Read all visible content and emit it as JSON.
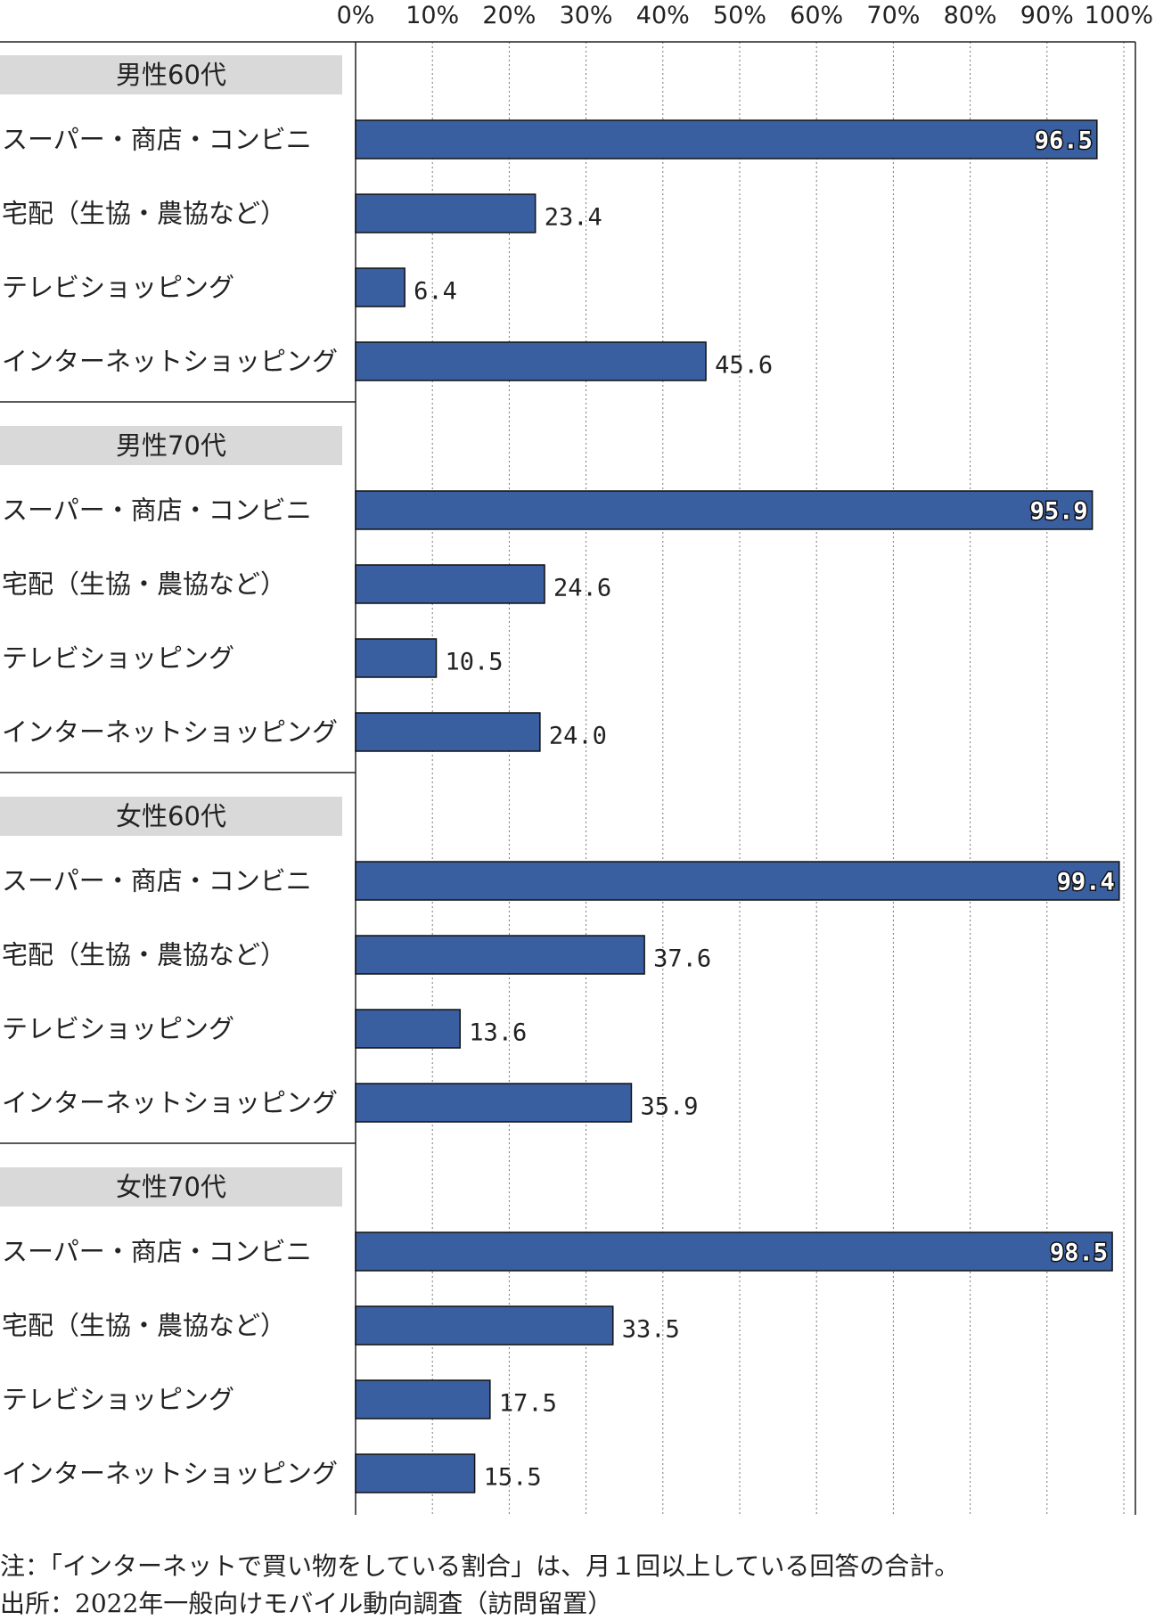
{
  "chart_data": {
    "type": "bar",
    "orientation": "horizontal",
    "x_ticks": [
      "0%",
      "10%",
      "20%",
      "30%",
      "40%",
      "50%",
      "60%",
      "70%",
      "80%",
      "90%",
      "100%"
    ],
    "xlim": [
      0,
      100
    ],
    "grid": "vertical dotted",
    "bar_color": "#3a5fa0",
    "groups": [
      {
        "name": "男性60代",
        "categories": [
          "スーパー・商店・コンビニ",
          "宅配（生協・農協など）",
          "テレビショッピング",
          "インターネットショッピング"
        ],
        "values": [
          96.5,
          23.4,
          6.4,
          45.6
        ],
        "labels": [
          "96.5",
          "23.4",
          "6.4",
          "45.6"
        ]
      },
      {
        "name": "男性70代",
        "categories": [
          "スーパー・商店・コンビニ",
          "宅配（生協・農協など）",
          "テレビショッピング",
          "インターネットショッピング"
        ],
        "values": [
          95.9,
          24.6,
          10.5,
          24.0
        ],
        "labels": [
          "95.9",
          "24.6",
          "10.5",
          "24.0"
        ]
      },
      {
        "name": "女性60代",
        "categories": [
          "スーパー・商店・コンビニ",
          "宅配（生協・農協など）",
          "テレビショッピング",
          "インターネットショッピング"
        ],
        "values": [
          99.4,
          37.6,
          13.6,
          35.9
        ],
        "labels": [
          "99.4",
          "37.6",
          "13.6",
          "35.9"
        ]
      },
      {
        "name": "女性70代",
        "categories": [
          "スーパー・商店・コンビニ",
          "宅配（生協・農協など）",
          "テレビショッピング",
          "インターネットショッピング"
        ],
        "values": [
          98.5,
          33.5,
          17.5,
          15.5
        ],
        "labels": [
          "98.5",
          "33.5",
          "17.5",
          "15.5"
        ]
      }
    ]
  },
  "notes": {
    "note": "注：「インターネットで買い物をしている割合」は、月１回以上している回答の合計。",
    "source": "出所：2022年一般向けモバイル動向調査（訪問留置）"
  }
}
